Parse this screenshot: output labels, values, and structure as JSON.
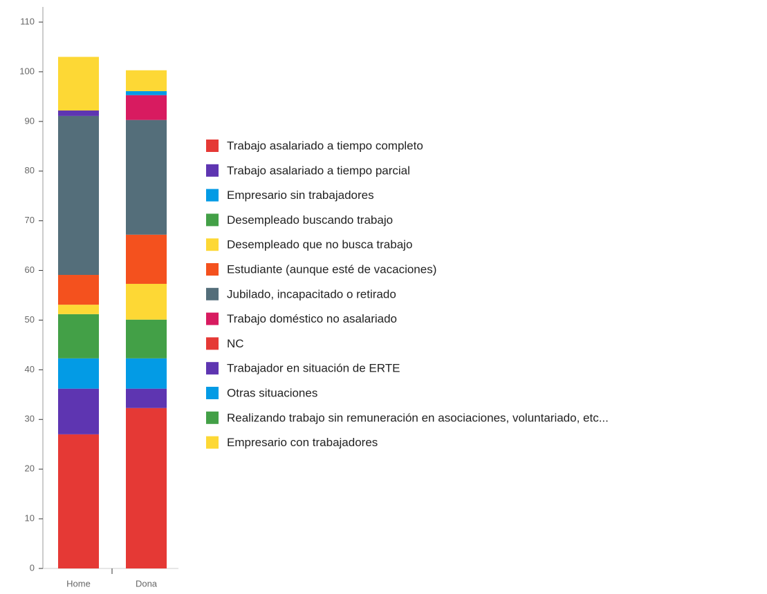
{
  "chart_data": {
    "type": "stacked_bar",
    "categories": [
      "Home",
      "Dona"
    ],
    "series": [
      {
        "name": "Trabajo asalariado a tiempo completo",
        "color": "#e53935",
        "values": [
          27.0,
          32.3
        ]
      },
      {
        "name": "Trabajo asalariado a tiempo parcial",
        "color": "#5e35b1",
        "values": [
          9.2,
          3.9
        ]
      },
      {
        "name": "Empresario sin trabajadores",
        "color": "#039be5",
        "values": [
          6.1,
          6.1
        ]
      },
      {
        "name": "Desempleado buscando trabajo",
        "color": "#43a047",
        "values": [
          8.9,
          7.8
        ]
      },
      {
        "name": "Desempleado que no busca trabajo",
        "color": "#fdd835",
        "values": [
          1.9,
          7.2
        ]
      },
      {
        "name": "Estudiante (aunque esté de vacaciones)",
        "color": "#f4511e",
        "values": [
          6.0,
          9.9
        ]
      },
      {
        "name": "Jubilado, incapacitado o retirado",
        "color": "#546e7a",
        "values": [
          32.0,
          23.1
        ]
      },
      {
        "name": "Trabajo doméstico no asalariado",
        "color": "#d81b60",
        "values": [
          0,
          5.0
        ]
      },
      {
        "name": "NC",
        "color": "#e53935",
        "values": [
          0,
          0
        ]
      },
      {
        "name": "Trabajador en situación de ERTE",
        "color": "#5e35b1",
        "values": [
          1.1,
          0
        ]
      },
      {
        "name": "Otras situaciones",
        "color": "#039be5",
        "values": [
          0,
          0.8
        ]
      },
      {
        "name": "Realizando trabajo sin remuneración en asociaciones, voluntariado, etc...",
        "color": "#43a047",
        "values": [
          0,
          0
        ]
      },
      {
        "name": "Empresario con trabajadores",
        "color": "#fdd835",
        "values": [
          10.8,
          4.2
        ]
      }
    ],
    "ylim": [
      0,
      110
    ],
    "yticks": [
      0,
      10,
      20,
      30,
      40,
      50,
      60,
      70,
      80,
      90,
      100,
      110
    ],
    "legend": "right"
  }
}
